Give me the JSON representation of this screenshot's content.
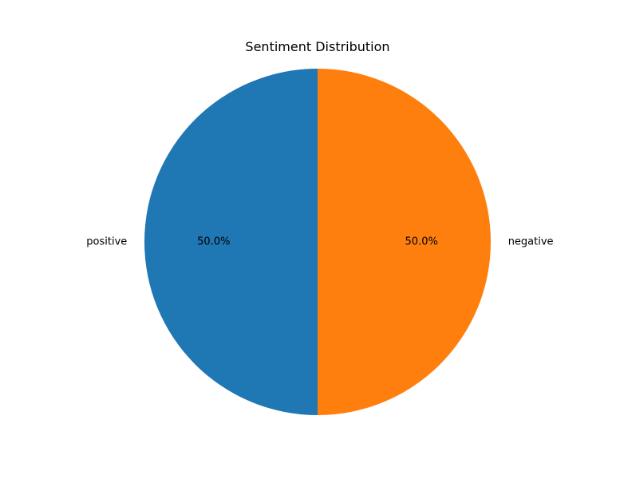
{
  "chart_data": {
    "type": "pie",
    "title": "Sentiment Distribution",
    "slices": [
      {
        "label": "positive",
        "value": 50.0,
        "pct_label": "50.0%",
        "color": "#1f77b4"
      },
      {
        "label": "negative",
        "value": 50.0,
        "pct_label": "50.0%",
        "color": "#ff7f0e"
      }
    ],
    "start_angle_deg": 90,
    "direction": "counterclockwise",
    "legend": "none"
  }
}
